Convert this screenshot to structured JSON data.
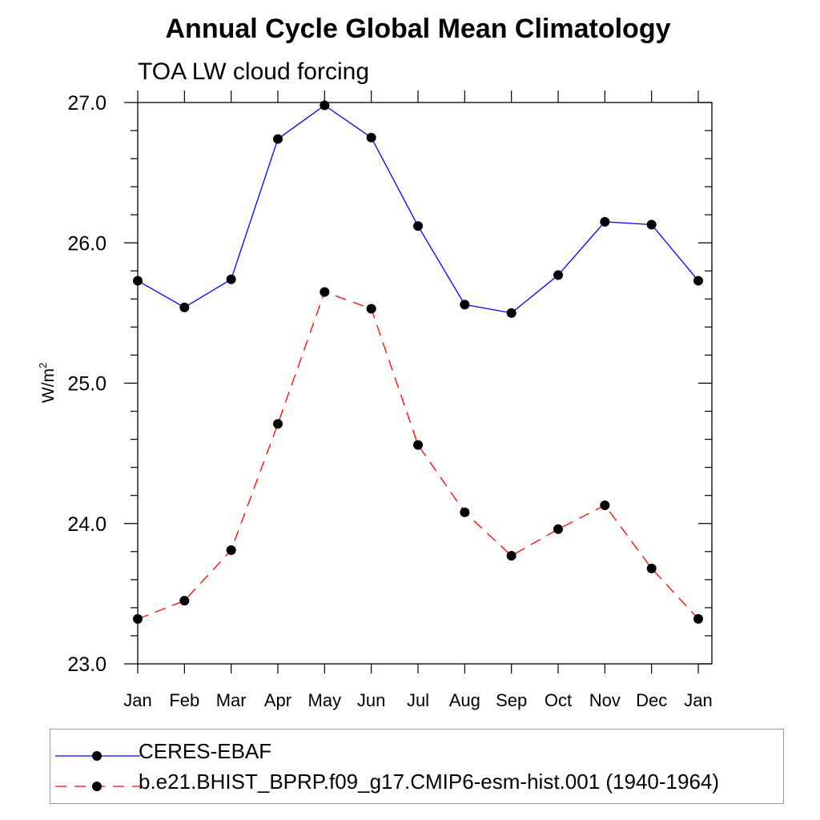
{
  "chart_data": {
    "type": "line",
    "title": "Annual Cycle Global Mean Climatology",
    "subtitle": "TOA LW cloud forcing",
    "xlabel": "",
    "ylabel": "W/m",
    "ylabel_superscript": "2",
    "categories": [
      "Jan",
      "Feb",
      "Mar",
      "Apr",
      "May",
      "Jun",
      "Jul",
      "Aug",
      "Sep",
      "Oct",
      "Nov",
      "Dec",
      "Jan"
    ],
    "ylim": [
      23.0,
      27.0
    ],
    "yticks": [
      "23.0",
      "24.0",
      "25.0",
      "26.0",
      "27.0"
    ],
    "grid": false,
    "legend_position": "bottom",
    "series": [
      {
        "name": "CERES-EBAF",
        "color": "#0000ff",
        "line_style": "solid",
        "marker": "filled-circle",
        "values": [
          25.73,
          25.54,
          25.74,
          26.74,
          26.98,
          26.75,
          26.12,
          25.56,
          25.5,
          25.77,
          26.15,
          26.13,
          25.73
        ]
      },
      {
        "name": "b.e21.BHIST_BPRP.f09_g17.CMIP6-esm-hist.001 (1940-1964)",
        "color": "#ff0000",
        "line_style": "dashed",
        "marker": "filled-circle",
        "values": [
          23.32,
          23.45,
          23.81,
          24.71,
          25.65,
          25.53,
          24.56,
          24.08,
          23.77,
          23.96,
          24.13,
          23.68,
          23.32
        ]
      }
    ]
  }
}
